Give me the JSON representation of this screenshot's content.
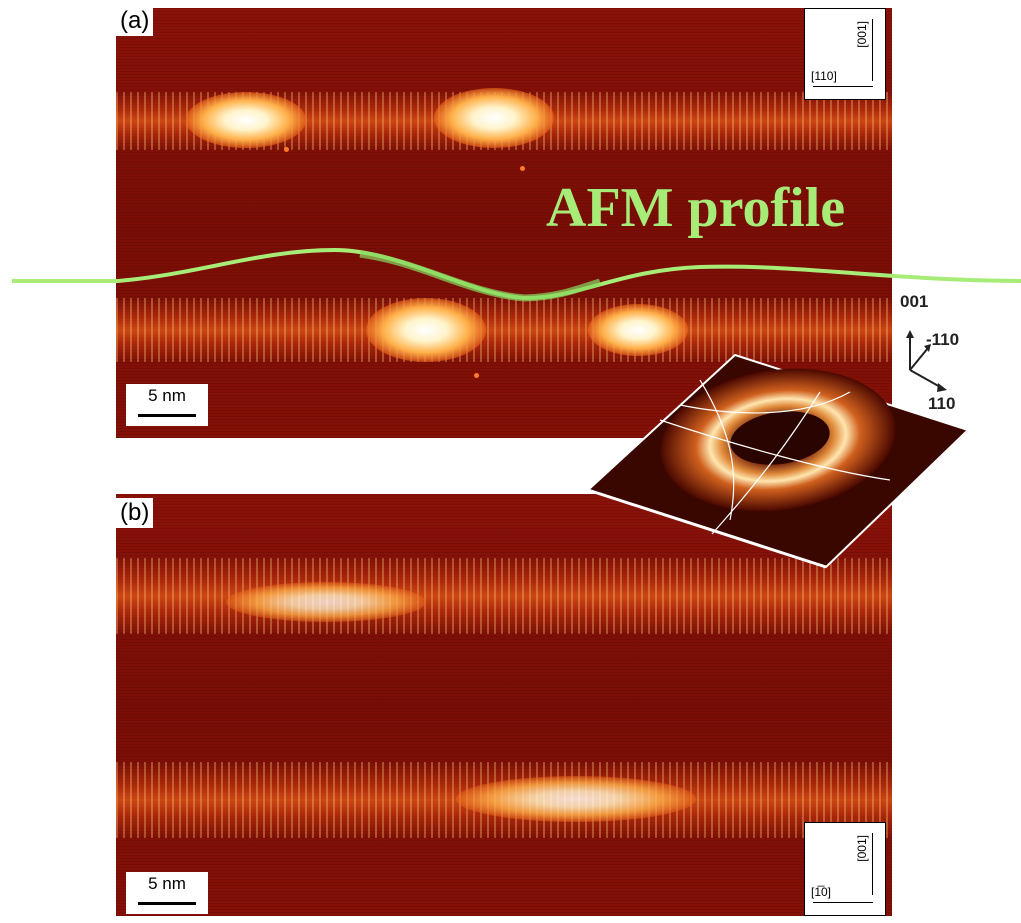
{
  "panel_a": {
    "label": "(a)",
    "scale_bar": "5 nm",
    "orientation": {
      "vertical": "[001]",
      "horizontal": "[110]"
    }
  },
  "panel_b": {
    "label": "(b)",
    "scale_bar": "5 nm",
    "orientation": {
      "vertical": "[001]",
      "horizontal": "[1̅0]"
    }
  },
  "afm_profile_label": "AFM profile",
  "axes": {
    "up": "001",
    "diagonal": "-110",
    "right": "110"
  },
  "colors": {
    "afm_profile": "#a8ec78",
    "stm_background": "#7e0c06",
    "stm_bright": "#fff4cc"
  }
}
